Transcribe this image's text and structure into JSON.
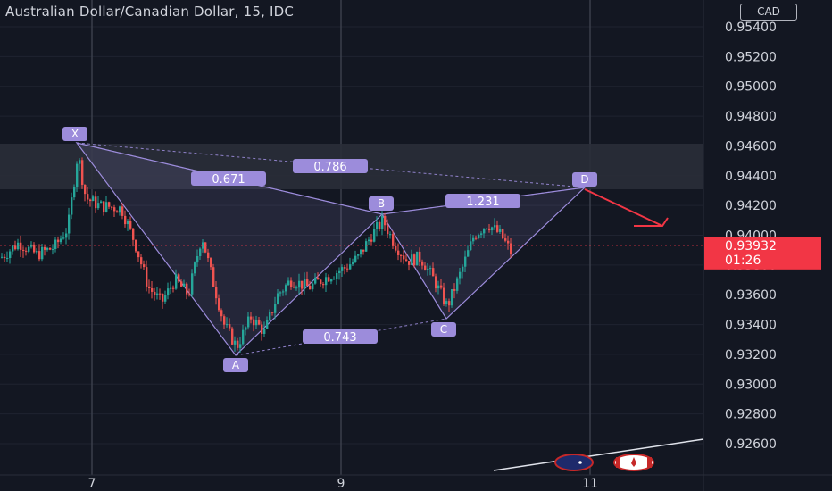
{
  "header": {
    "title": "Australian Dollar/Canadian Dollar, 15, IDC",
    "currency": "CAD"
  },
  "current_price": {
    "value": "0.93932",
    "countdown": "01:26",
    "color": "#f23645"
  },
  "colors": {
    "background": "#131722",
    "up": "#26a69a",
    "down": "#ef5350",
    "pattern": "#9c8cdb",
    "label_bg": "#9c8cdb",
    "arrow": "#f23645"
  },
  "chart_data": {
    "type": "candlestick",
    "title": "Australian Dollar/Canadian Dollar, 15, IDC",
    "y_ticks": [
      "0.95400",
      "0.95200",
      "0.95000",
      "0.94800",
      "0.94600",
      "0.94400",
      "0.94200",
      "0.94000",
      "0.93800",
      "0.93600",
      "0.93400",
      "0.93200",
      "0.93000",
      "0.92800",
      "0.92600"
    ],
    "x_ticks": [
      "7",
      "9",
      "11"
    ],
    "ylim": [
      0.9236,
      0.9555
    ],
    "resistance_zone": [
      0.9431,
      0.9462
    ],
    "harmonic_points": [
      {
        "label": "X",
        "price": 0.9462
      },
      {
        "label": "A",
        "price": 0.9322
      },
      {
        "label": "B",
        "price": 0.9416
      },
      {
        "label": "C",
        "price": 0.9346
      },
      {
        "label": "D",
        "price": 0.9431
      }
    ],
    "ratios": [
      {
        "label": "0.671",
        "between": "XA-B"
      },
      {
        "label": "0.786",
        "between": "XA-D"
      },
      {
        "label": "0.743",
        "between": "AB-C"
      },
      {
        "label": "1.231",
        "between": "BC-D"
      }
    ],
    "grid": true
  }
}
